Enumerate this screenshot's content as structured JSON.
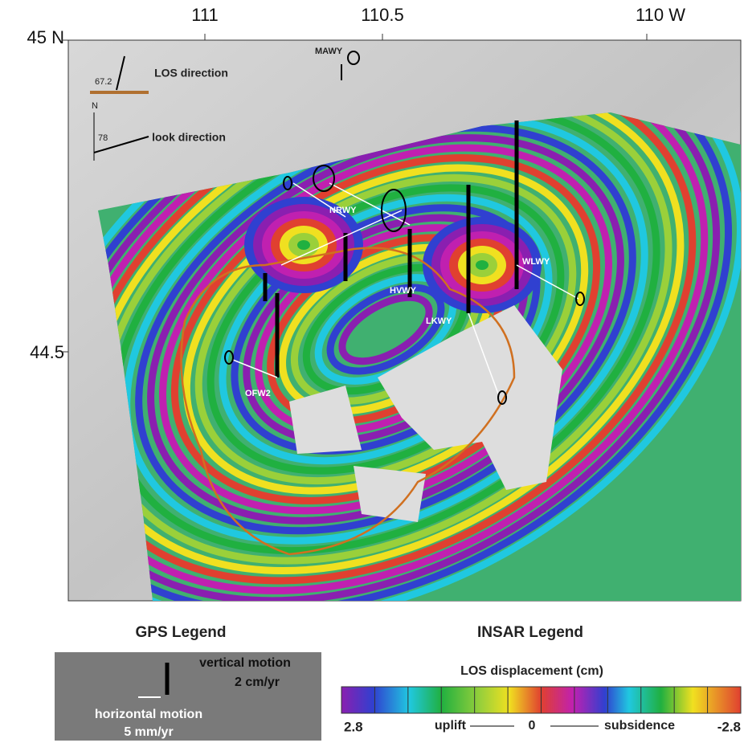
{
  "map": {
    "longitude_labels": [
      "111",
      "110.5",
      "110 W"
    ],
    "latitude_labels": [
      "45 N",
      "44.5"
    ],
    "los_direction": {
      "angle": "67.2",
      "label": "LOS direction"
    },
    "look_direction": {
      "north": "N",
      "angle": "78",
      "label": "look direction"
    },
    "stations": [
      "MAWY",
      "NRWY",
      "HVWY",
      "LKWY",
      "WLWY",
      "OFW2"
    ]
  },
  "gps_legend": {
    "title": "GPS Legend",
    "vertical": "vertical motion",
    "vertical_scale": "2 cm/yr",
    "horizontal": "horizontal motion",
    "horizontal_scale": "5 mm/yr"
  },
  "insar_legend": {
    "title": "INSAR Legend",
    "colorbar_title": "LOS displacement (cm)",
    "left": "2.8",
    "uplift": "uplift",
    "zero": "0",
    "subsidence": "subsidence",
    "right": "-2.8"
  }
}
